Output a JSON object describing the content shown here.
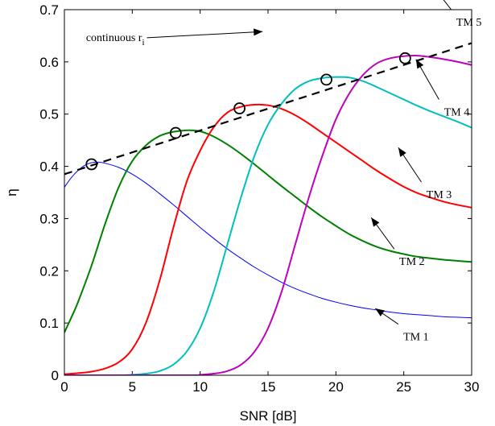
{
  "chart_data": {
    "type": "line",
    "xlabel": "SNR [dB]",
    "ylabel": "η",
    "xlim": [
      0,
      30
    ],
    "ylim": [
      0,
      0.7
    ],
    "xticks": [
      0,
      5,
      10,
      15,
      20,
      25,
      30
    ],
    "yticks": [
      0,
      0.1,
      0.2,
      0.3,
      0.4,
      0.5,
      0.6,
      0.7
    ],
    "grid": false,
    "series": [
      {
        "name": "TM 1",
        "color": "#0000ff",
        "points": [
          [
            0,
            0.36
          ],
          [
            0.5,
            0.378
          ],
          [
            1,
            0.392
          ],
          [
            1.5,
            0.402
          ],
          [
            2,
            0.407
          ],
          [
            2.5,
            0.408
          ],
          [
            3,
            0.406
          ],
          [
            4,
            0.398
          ],
          [
            5,
            0.385
          ],
          [
            6,
            0.368
          ],
          [
            7,
            0.348
          ],
          [
            8,
            0.327
          ],
          [
            9,
            0.305
          ],
          [
            10,
            0.283
          ],
          [
            11,
            0.262
          ],
          [
            12,
            0.242
          ],
          [
            13,
            0.224
          ],
          [
            14,
            0.207
          ],
          [
            15,
            0.192
          ],
          [
            16,
            0.178
          ],
          [
            17,
            0.166
          ],
          [
            18,
            0.156
          ],
          [
            19,
            0.147
          ],
          [
            20,
            0.14
          ],
          [
            21,
            0.134
          ],
          [
            22,
            0.129
          ],
          [
            23,
            0.125
          ],
          [
            24,
            0.121
          ],
          [
            25,
            0.118
          ],
          [
            26,
            0.116
          ],
          [
            27,
            0.114
          ],
          [
            28,
            0.112
          ],
          [
            29,
            0.111
          ],
          [
            30,
            0.11
          ]
        ]
      },
      {
        "name": "TM 2",
        "color": "#008000",
        "points": [
          [
            0,
            0.082
          ],
          [
            0.5,
            0.11
          ],
          [
            1,
            0.14
          ],
          [
            2,
            0.21
          ],
          [
            3,
            0.29
          ],
          [
            4,
            0.36
          ],
          [
            5,
            0.41
          ],
          [
            6,
            0.44
          ],
          [
            7,
            0.458
          ],
          [
            8,
            0.466
          ],
          [
            9,
            0.469
          ],
          [
            10,
            0.467
          ],
          [
            11,
            0.457
          ],
          [
            12,
            0.442
          ],
          [
            13,
            0.424
          ],
          [
            14,
            0.404
          ],
          [
            15,
            0.383
          ],
          [
            16,
            0.362
          ],
          [
            17,
            0.342
          ],
          [
            18,
            0.322
          ],
          [
            19,
            0.303
          ],
          [
            20,
            0.286
          ],
          [
            21,
            0.27
          ],
          [
            22,
            0.257
          ],
          [
            23,
            0.246
          ],
          [
            24,
            0.238
          ],
          [
            25,
            0.232
          ],
          [
            26,
            0.227
          ],
          [
            27,
            0.224
          ],
          [
            28,
            0.221
          ],
          [
            29,
            0.219
          ],
          [
            30,
            0.217
          ]
        ]
      },
      {
        "name": "TM 3",
        "color": "#ff0000",
        "points": [
          [
            0,
            0.002
          ],
          [
            1,
            0.004
          ],
          [
            2,
            0.007
          ],
          [
            3,
            0.013
          ],
          [
            4,
            0.025
          ],
          [
            5,
            0.05
          ],
          [
            6,
            0.1
          ],
          [
            7,
            0.18
          ],
          [
            8,
            0.28
          ],
          [
            9,
            0.37
          ],
          [
            10,
            0.43
          ],
          [
            11,
            0.475
          ],
          [
            12,
            0.503
          ],
          [
            13,
            0.514
          ],
          [
            14,
            0.518
          ],
          [
            15,
            0.517
          ],
          [
            16,
            0.51
          ],
          [
            17,
            0.498
          ],
          [
            18,
            0.482
          ],
          [
            19,
            0.464
          ],
          [
            20,
            0.446
          ],
          [
            21,
            0.428
          ],
          [
            22,
            0.41
          ],
          [
            23,
            0.392
          ],
          [
            24,
            0.376
          ],
          [
            25,
            0.361
          ],
          [
            26,
            0.349
          ],
          [
            27,
            0.34
          ],
          [
            28,
            0.332
          ],
          [
            29,
            0.326
          ],
          [
            30,
            0.321
          ]
        ]
      },
      {
        "name": "TM 4",
        "color": "#00bfbf",
        "points": [
          [
            0,
            0
          ],
          [
            4,
            0
          ],
          [
            5,
            0.001
          ],
          [
            6,
            0.003
          ],
          [
            7,
            0.008
          ],
          [
            8,
            0.02
          ],
          [
            9,
            0.045
          ],
          [
            10,
            0.09
          ],
          [
            11,
            0.16
          ],
          [
            12,
            0.25
          ],
          [
            13,
            0.34
          ],
          [
            14,
            0.42
          ],
          [
            15,
            0.48
          ],
          [
            16,
            0.52
          ],
          [
            17,
            0.548
          ],
          [
            18,
            0.563
          ],
          [
            19,
            0.569
          ],
          [
            20,
            0.571
          ],
          [
            21,
            0.57
          ],
          [
            22,
            0.563
          ],
          [
            23,
            0.552
          ],
          [
            24,
            0.54
          ],
          [
            25,
            0.528
          ],
          [
            26,
            0.516
          ],
          [
            27,
            0.505
          ],
          [
            28,
            0.495
          ],
          [
            29,
            0.485
          ],
          [
            30,
            0.474
          ]
        ]
      },
      {
        "name": "TM 5",
        "color": "#bf00bf",
        "points": [
          [
            0,
            0
          ],
          [
            9,
            0
          ],
          [
            10,
            0.001
          ],
          [
            11,
            0.003
          ],
          [
            12,
            0.008
          ],
          [
            13,
            0.02
          ],
          [
            14,
            0.045
          ],
          [
            15,
            0.09
          ],
          [
            16,
            0.16
          ],
          [
            17,
            0.25
          ],
          [
            18,
            0.34
          ],
          [
            19,
            0.42
          ],
          [
            20,
            0.49
          ],
          [
            21,
            0.54
          ],
          [
            22,
            0.575
          ],
          [
            23,
            0.597
          ],
          [
            24,
            0.607
          ],
          [
            25,
            0.611
          ],
          [
            26,
            0.612
          ],
          [
            27,
            0.609
          ],
          [
            28,
            0.605
          ],
          [
            29,
            0.6
          ],
          [
            30,
            0.594
          ]
        ]
      }
    ],
    "envelope": {
      "name": "continuous r",
      "name_subscript": "i",
      "style": "dashed",
      "color": "#000000",
      "points": [
        [
          0,
          0.385
        ],
        [
          30,
          0.636
        ]
      ]
    },
    "markers": [
      [
        2,
        0.404
      ],
      [
        8.2,
        0.464
      ],
      [
        12.9,
        0.511
      ],
      [
        19.3,
        0.566
      ],
      [
        25.1,
        0.607
      ]
    ],
    "annotations": [
      {
        "text": "TM 1",
        "target": [
          22.9,
          0.128
        ],
        "label_at": [
          25.9,
          0.067
        ]
      },
      {
        "text": "TM 2",
        "target": [
          22.6,
          0.302
        ],
        "label_at": [
          25.6,
          0.211
        ]
      },
      {
        "text": "TM 3",
        "target": [
          24.6,
          0.436
        ],
        "label_at": [
          27.6,
          0.339
        ]
      },
      {
        "text": "TM 4",
        "target": [
          25.9,
          0.605
        ],
        "label_at": [
          28.9,
          0.497
        ]
      },
      {
        "text": "TM 5",
        "target": [
          26.8,
          0.757
        ],
        "label_at": [
          29.8,
          0.669
        ]
      },
      {
        "text": "continuous r",
        "text_subscript": "i",
        "target": [
          14.6,
          0.658
        ],
        "label_at": [
          5.9,
          0.64
        ]
      }
    ]
  }
}
